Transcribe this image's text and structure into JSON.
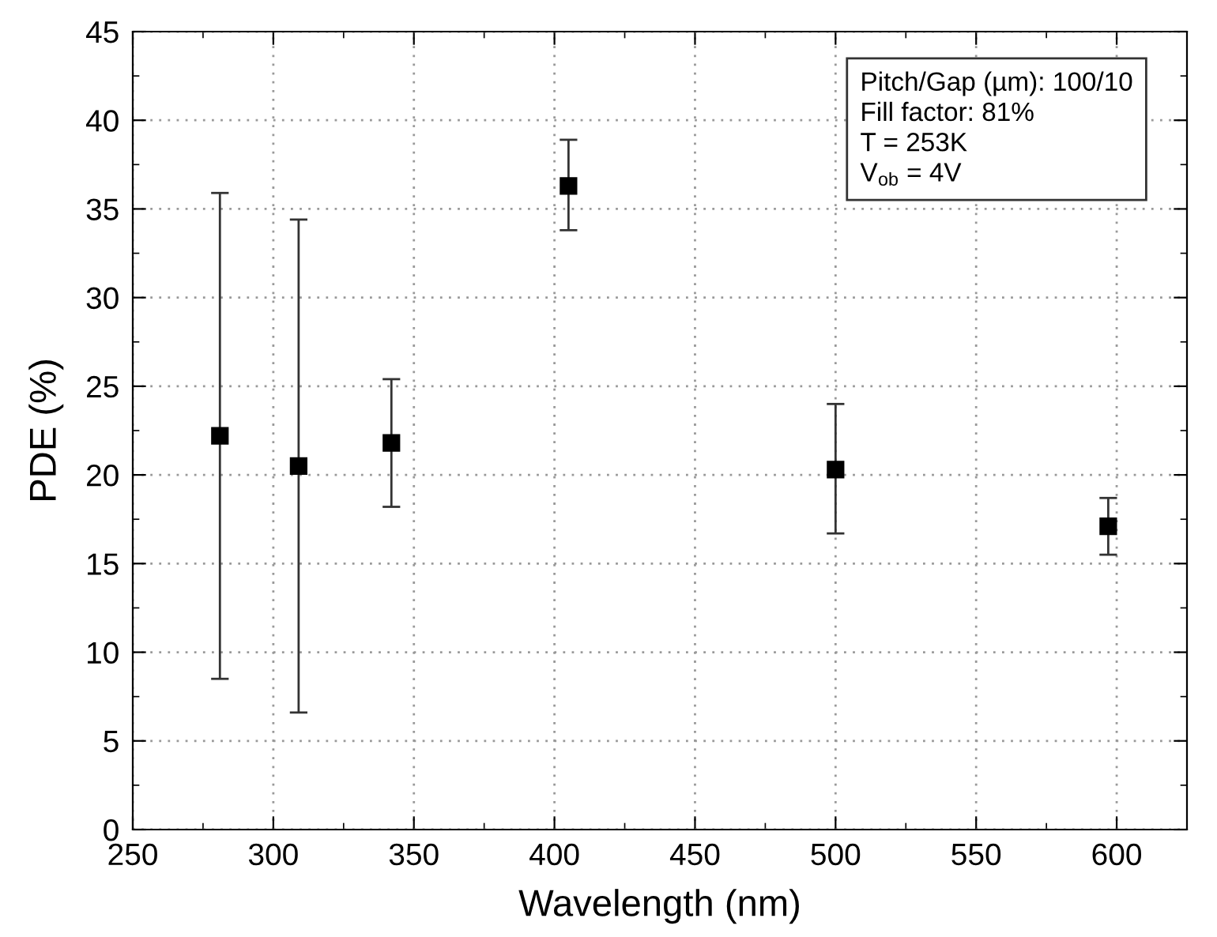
{
  "chart_data": {
    "type": "scatter",
    "xlabel": "Wavelength (nm)",
    "ylabel": "PDE (%)",
    "x": [
      281,
      309,
      342,
      405,
      500,
      597
    ],
    "series": [
      {
        "color": "#000000",
        "values": [
          22.2,
          20.5,
          21.8,
          36.3,
          20.3,
          17.1
        ],
        "errors": [
          [
            8.5,
            35.9
          ],
          [
            6.6,
            34.4
          ],
          [
            18.2,
            25.4
          ],
          [
            33.8,
            38.9
          ],
          [
            16.7,
            24.0
          ],
          [
            15.5,
            18.7
          ]
        ]
      }
    ],
    "xlim": [
      250,
      625
    ],
    "xticks": [
      250,
      300,
      350,
      400,
      450,
      500,
      550,
      600
    ],
    "ylim": [
      0,
      45
    ],
    "yticks": [
      0,
      5,
      10,
      15,
      20,
      25,
      30,
      35,
      40,
      45
    ],
    "grid": true,
    "marker": "square",
    "annotations": [
      "Pitch/Gap (µm): 100/10\nFill factor: 81%\nT = 253K\nV$_{ob}$ = 4V"
    ]
  }
}
